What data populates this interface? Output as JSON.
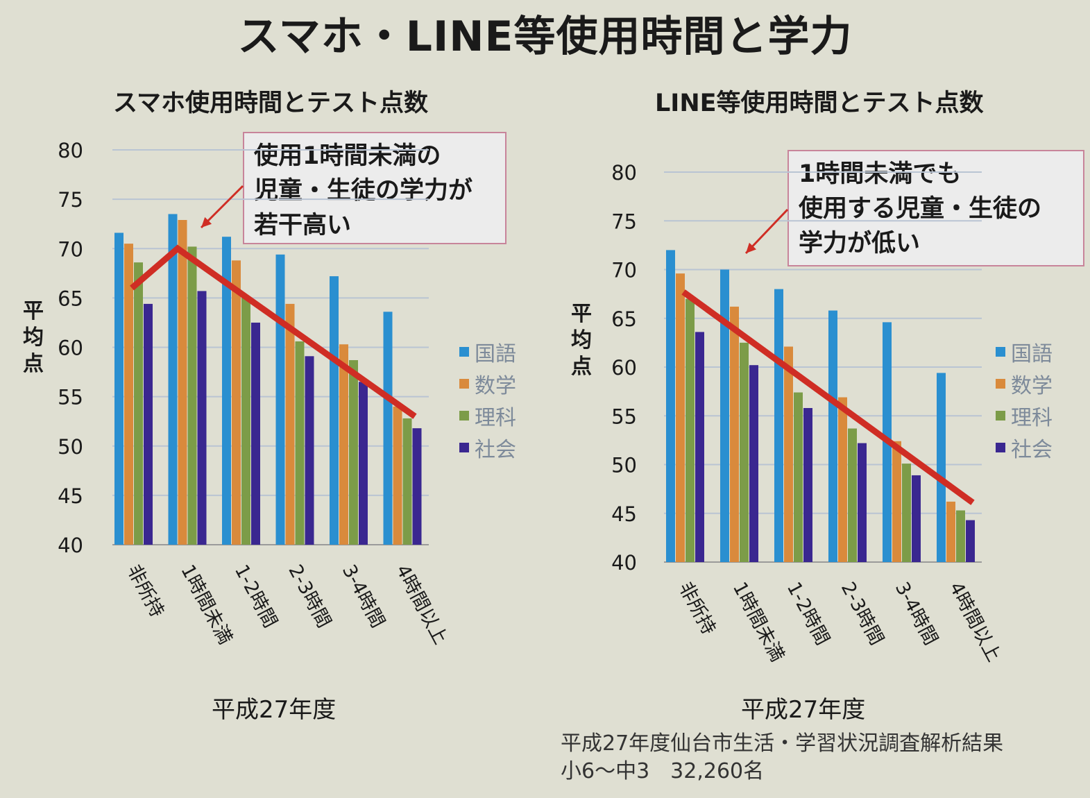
{
  "page": {
    "title": "スマホ・LINE等使用時間と学力",
    "source_line1": "平成27年度仙台市生活・学習状況調査解析結果",
    "source_line2": "小6～中3　32,260名"
  },
  "colors": {
    "国語": "#2a8fd0",
    "数学": "#d98a3c",
    "理科": "#7c9c48",
    "社会": "#3a2790",
    "trend": "#cf2d24",
    "callout_border": "#c8849a",
    "grid": "#b9c4d3"
  },
  "chart_data": [
    {
      "type": "bar",
      "title": "スマホ使用時間とテスト点数",
      "xlabel": "平成27年度",
      "ylabel": "平均点",
      "ylim": [
        40,
        80
      ],
      "yticks": [
        80,
        75,
        70,
        65,
        60,
        55,
        50,
        45,
        40
      ],
      "categories": [
        "非所持",
        "1時間未満",
        "1-2時間",
        "2-3時間",
        "3-4時間",
        "4時間以上"
      ],
      "series": [
        {
          "name": "国語",
          "values": [
            71.6,
            73.5,
            71.2,
            69.4,
            67.2,
            63.6
          ]
        },
        {
          "name": "数学",
          "values": [
            70.5,
            72.9,
            68.8,
            64.4,
            60.3,
            54.0
          ]
        },
        {
          "name": "理科",
          "values": [
            68.6,
            70.2,
            65.0,
            60.6,
            58.7,
            52.8
          ]
        },
        {
          "name": "社会",
          "values": [
            64.4,
            65.7,
            62.5,
            59.1,
            56.5,
            51.8
          ]
        }
      ],
      "trend_line": [
        66.0,
        70.0,
        53.0
      ],
      "legend_position": "right",
      "grid": true,
      "annotation": [
        "使用1時間未満の",
        "児童・生徒の学力が",
        "若干高い"
      ]
    },
    {
      "type": "bar",
      "title": "LINE等使用時間とテスト点数",
      "xlabel": "平成27年度",
      "ylabel": "平均点",
      "ylim": [
        40,
        80
      ],
      "yticks": [
        80,
        75,
        70,
        65,
        60,
        55,
        50,
        45,
        40
      ],
      "categories": [
        "非所持",
        "1時間未満",
        "1-2時間",
        "2-3時間",
        "3-4時間",
        "4時間以上"
      ],
      "series": [
        {
          "name": "国語",
          "values": [
            72.0,
            70.0,
            68.0,
            65.8,
            64.6,
            59.4
          ]
        },
        {
          "name": "数学",
          "values": [
            69.6,
            66.2,
            62.1,
            56.9,
            52.4,
            46.2
          ]
        },
        {
          "name": "理科",
          "values": [
            67.0,
            62.5,
            57.4,
            53.7,
            50.1,
            45.3
          ]
        },
        {
          "name": "社会",
          "values": [
            63.6,
            60.2,
            55.8,
            52.2,
            48.9,
            44.3
          ]
        }
      ],
      "trend_line": [
        67.7,
        46.1
      ],
      "legend_position": "right",
      "grid": true,
      "annotation": [
        "1時間未満でも",
        "使用する児童・生徒の",
        "学力が低い"
      ]
    }
  ]
}
